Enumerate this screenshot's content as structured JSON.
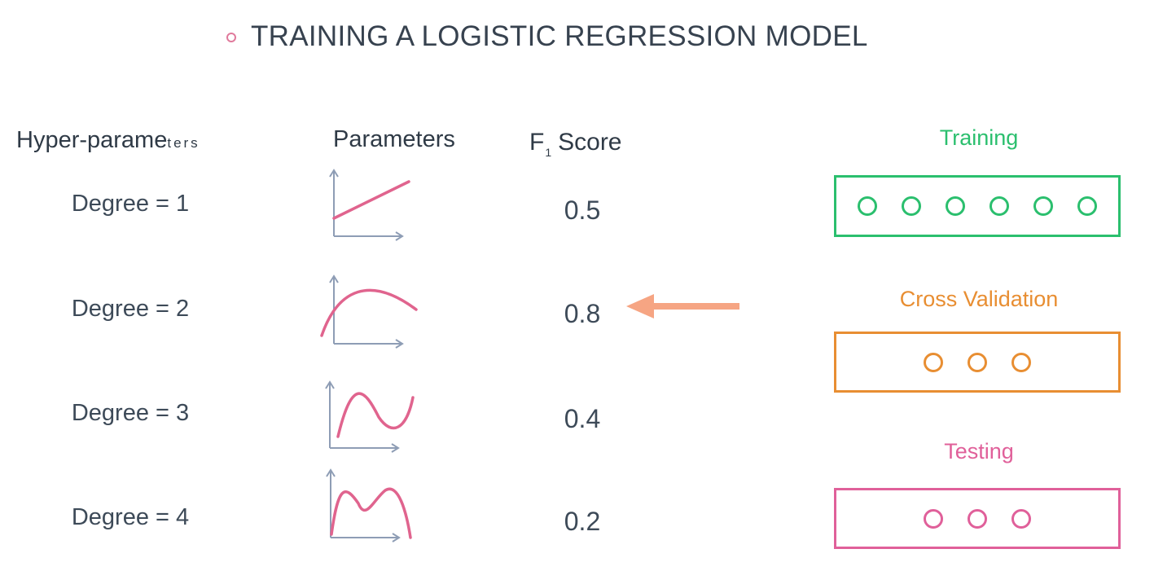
{
  "title": "TRAINING A LOGISTIC REGRESSION MODEL",
  "headers": {
    "hyperparameters_main": "Hyper-parame",
    "hyperparameters_tail": "ters",
    "parameters": "Parameters",
    "f1_letter": "F",
    "f1_subscript": "1",
    "f1_word": "Score"
  },
  "rows": [
    {
      "degree": "Degree = 1",
      "score": "0.5",
      "curve": "line"
    },
    {
      "degree": "Degree = 2",
      "score": "0.8",
      "curve": "quadratic"
    },
    {
      "degree": "Degree = 3",
      "score": "0.4",
      "curve": "cubic"
    },
    {
      "degree": "Degree = 4",
      "score": "0.2",
      "curve": "quartic"
    }
  ],
  "sets": {
    "training": {
      "label": "Training",
      "points": 6,
      "color": "#2bbf6e"
    },
    "cross_validation": {
      "label": "Cross Validation",
      "points": 3,
      "color": "#e88e32"
    },
    "testing": {
      "label": "Testing",
      "points": 3,
      "color": "#e0609a"
    }
  },
  "arrow": {
    "points_to": "Degree = 2",
    "color": "#f6a583"
  },
  "colors": {
    "curve": "#e0648e",
    "axis": "#8e9db5",
    "text": "#3d4a58",
    "title_bullet": "#e07a9c"
  }
}
